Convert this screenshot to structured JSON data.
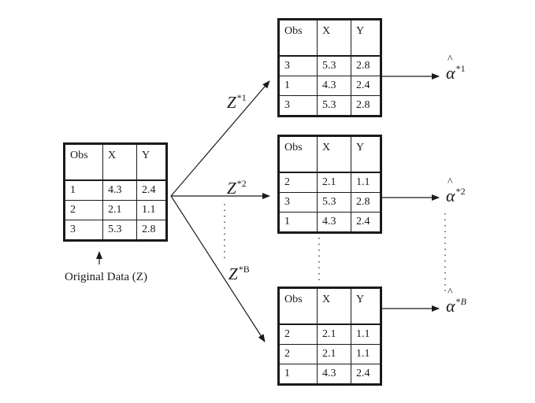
{
  "original": {
    "caption": "Original Data (Z)",
    "columns": [
      "Obs",
      "X",
      "Y"
    ],
    "rows": [
      [
        "1",
        "4.3",
        "2.4"
      ],
      [
        "2",
        "2.1",
        "1.1"
      ],
      [
        "3",
        "5.3",
        "2.8"
      ]
    ]
  },
  "bootstrap": [
    {
      "label_base": "Z",
      "label_sup": "*1",
      "stat_base": "α",
      "stat_sup_star": "*",
      "stat_sup_idx": "1",
      "columns": [
        "Obs",
        "X",
        "Y"
      ],
      "rows": [
        [
          "3",
          "5.3",
          "2.8"
        ],
        [
          "1",
          "4.3",
          "2.4"
        ],
        [
          "3",
          "5.3",
          "2.8"
        ]
      ]
    },
    {
      "label_base": "Z",
      "label_sup": "*2",
      "stat_base": "α",
      "stat_sup_star": "*",
      "stat_sup_idx": "2",
      "columns": [
        "Obs",
        "X",
        "Y"
      ],
      "rows": [
        [
          "2",
          "2.1",
          "1.1"
        ],
        [
          "3",
          "5.3",
          "2.8"
        ],
        [
          "1",
          "4.3",
          "2.4"
        ]
      ]
    },
    {
      "label_base": "Z",
      "label_sup": "*B",
      "stat_base": "α",
      "stat_sup_star": "*",
      "stat_sup_idx": "B",
      "columns": [
        "Obs",
        "X",
        "Y"
      ],
      "rows": [
        [
          "2",
          "2.1",
          "1.1"
        ],
        [
          "2",
          "2.1",
          "1.1"
        ],
        [
          "1",
          "4.3",
          "2.4"
        ]
      ]
    }
  ]
}
